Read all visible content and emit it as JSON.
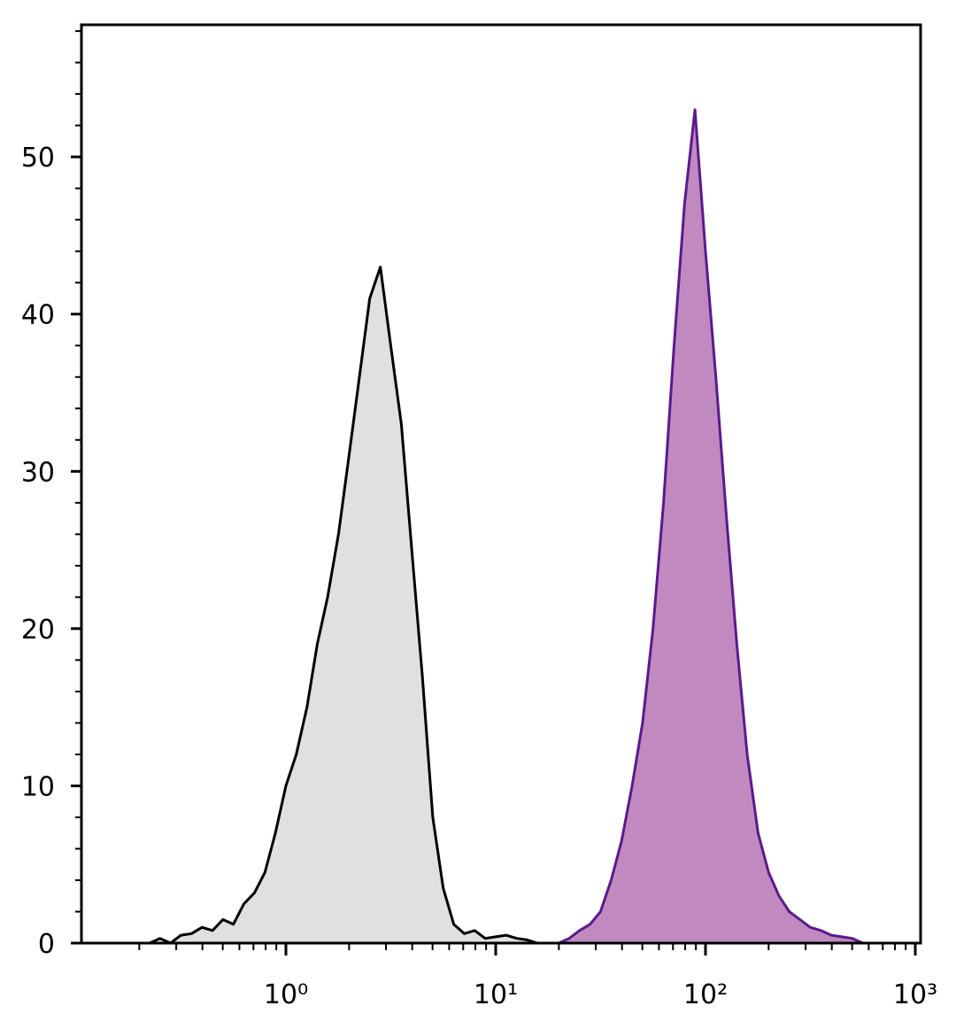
{
  "chart_data": {
    "type": "histogram-overlay",
    "xscale": "log",
    "xlim": [
      0.106,
      1060
    ],
    "ylim": [
      0,
      58.4
    ],
    "xticks": [
      {
        "value": 1,
        "label": "10⁰"
      },
      {
        "value": 10,
        "label": "10¹"
      },
      {
        "value": 100,
        "label": "10²"
      },
      {
        "value": 1000,
        "label": "10³"
      }
    ],
    "xminorticks": [
      0.2,
      0.3,
      0.4,
      0.5,
      0.6,
      0.7,
      0.8,
      0.9,
      2,
      3,
      4,
      5,
      6,
      7,
      8,
      9,
      20,
      30,
      40,
      50,
      60,
      70,
      80,
      90,
      200,
      300,
      400,
      500,
      600,
      700,
      800,
      900
    ],
    "yticks": [
      0,
      10,
      20,
      30,
      40,
      50
    ],
    "yminorticks": [
      2,
      4,
      6,
      8,
      12,
      14,
      16,
      18,
      22,
      24,
      26,
      28,
      32,
      34,
      36,
      38,
      42,
      44,
      46,
      48,
      52,
      54,
      56,
      58
    ],
    "x": [
      0.126,
      0.141,
      0.158,
      0.178,
      0.2,
      0.224,
      0.251,
      0.282,
      0.316,
      0.355,
      0.398,
      0.447,
      0.501,
      0.562,
      0.631,
      0.708,
      0.794,
      0.891,
      1,
      1.12,
      1.26,
      1.41,
      1.58,
      1.78,
      2,
      2.24,
      2.51,
      2.82,
      3.16,
      3.55,
      3.98,
      4.47,
      5.01,
      5.62,
      6.31,
      7.08,
      7.94,
      8.91,
      10,
      11.2,
      12.6,
      14.1,
      15.8,
      17.8,
      20,
      22.4,
      25.1,
      28.2,
      31.6,
      35.5,
      39.8,
      44.7,
      50.1,
      56.2,
      63.1,
      70.8,
      79.4,
      89.1,
      100,
      112,
      126,
      141,
      158,
      178,
      200,
      224,
      251,
      282,
      316,
      355,
      398,
      447,
      501,
      562,
      631,
      708,
      794,
      891,
      1000
    ],
    "series": [
      {
        "color": "#000000",
        "fill": "#e0e0e0",
        "values": [
          0,
          0,
          0,
          0,
          0,
          0,
          0.3,
          0,
          0.5,
          0.6,
          1,
          0.8,
          1.5,
          1.2,
          2.5,
          3.2,
          4.5,
          7,
          10,
          12,
          15,
          19,
          22,
          26,
          31,
          36,
          41,
          43,
          38,
          33,
          25,
          17,
          8,
          3.5,
          1.2,
          0.6,
          0.8,
          0.3,
          0.4,
          0.5,
          0.3,
          0.2,
          0,
          0,
          0,
          0,
          0,
          0,
          0,
          0,
          0,
          0,
          0,
          0,
          0,
          0,
          0,
          0,
          0,
          0,
          0,
          0,
          0,
          0,
          0,
          0,
          0,
          0,
          0,
          0,
          0,
          0,
          0,
          0,
          0,
          0,
          0,
          0,
          0
        ]
      },
      {
        "color": "#5b1a8c",
        "fill": "#c08ac0",
        "values": [
          0,
          0,
          0,
          0,
          0,
          0,
          0,
          0,
          0,
          0,
          0,
          0,
          0,
          0,
          0,
          0,
          0,
          0,
          0,
          0,
          0,
          0,
          0,
          0,
          0,
          0,
          0,
          0,
          0,
          0,
          0,
          0,
          0,
          0,
          0,
          0,
          0,
          0,
          0,
          0,
          0,
          0,
          0,
          0,
          0,
          0.3,
          0.8,
          1.2,
          2,
          4,
          6.5,
          10,
          14,
          20,
          28,
          38,
          47,
          53,
          44,
          36,
          27,
          19,
          12,
          7,
          4.5,
          3,
          2,
          1.5,
          1,
          0.8,
          0.5,
          0.4,
          0.3,
          0,
          0,
          0,
          0,
          0,
          0
        ]
      }
    ]
  }
}
